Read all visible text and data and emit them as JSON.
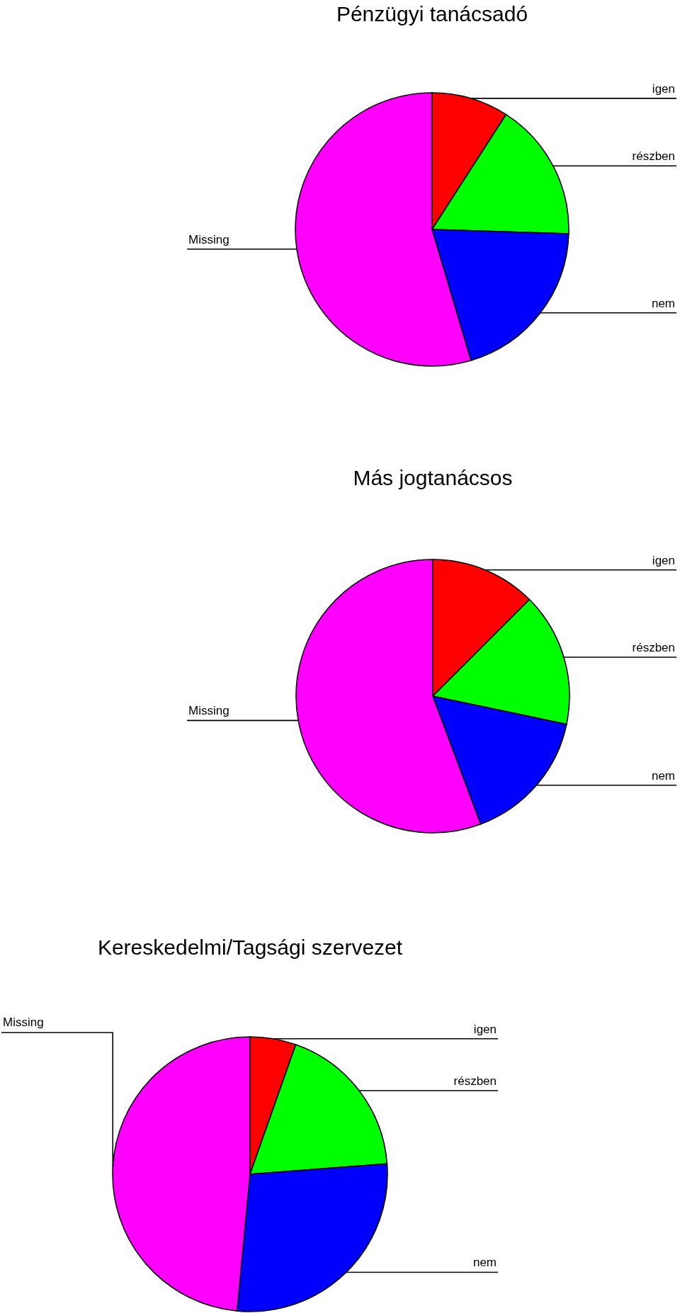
{
  "chart_data": [
    {
      "type": "pie",
      "title": "Pénzügyi tanácsadó",
      "categories": [
        "igen",
        "részben",
        "nem",
        "Missing"
      ],
      "values": [
        9.1,
        16.4,
        19.9,
        54.6
      ],
      "colors": [
        "#ff0000",
        "#00ff00",
        "#0000ff",
        "#ff00ff"
      ]
    },
    {
      "type": "pie",
      "title": "Más jogtanácsos",
      "categories": [
        "igen",
        "részben",
        "nem",
        "Missing"
      ],
      "values": [
        12.5,
        15.8,
        16.0,
        55.7
      ],
      "colors": [
        "#ff0000",
        "#00ff00",
        "#0000ff",
        "#ff00ff"
      ]
    },
    {
      "type": "pie",
      "title": "Kereskedelmi/Tagsági szervezet",
      "categories": [
        "igen",
        "részben",
        "nem",
        "Missing"
      ],
      "values": [
        5.4,
        18.4,
        27.7,
        48.5
      ],
      "colors": [
        "#ff0000",
        "#00ff00",
        "#0000ff",
        "#ff00ff"
      ]
    }
  ]
}
